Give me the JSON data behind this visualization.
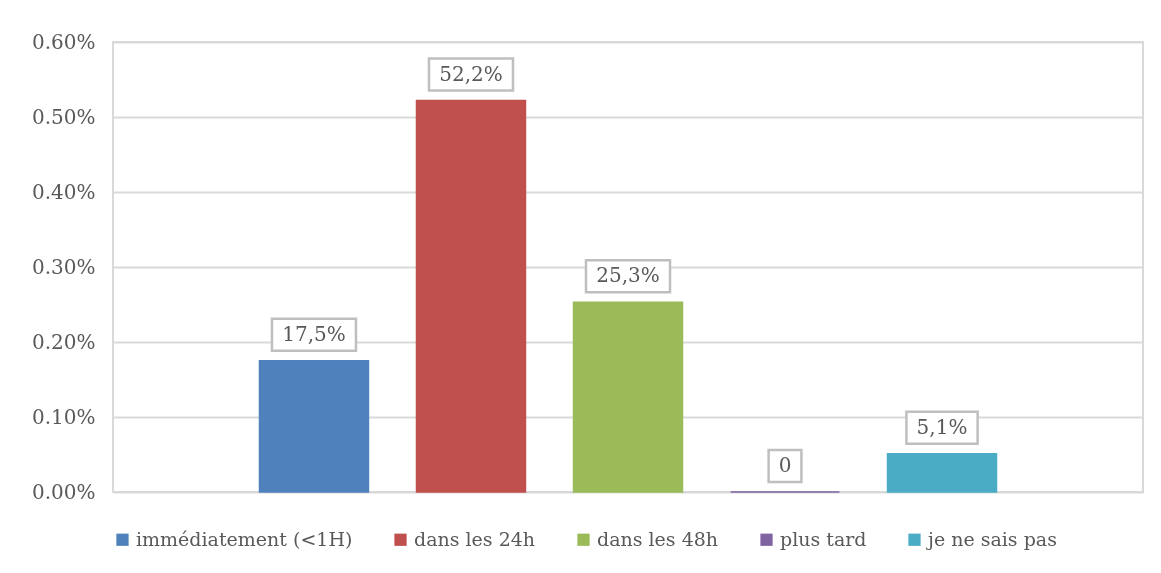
{
  "chart_data": {
    "type": "bar",
    "categories": [
      null
    ],
    "series": [
      {
        "name": "immédiatement (<1H)",
        "color": "#4f81bd",
        "values": [
          0.175
        ],
        "value_labels": [
          "17,5%"
        ]
      },
      {
        "name": "dans les 24h",
        "color": "#c0504d",
        "values": [
          0.522
        ],
        "value_labels": [
          "52,2%"
        ]
      },
      {
        "name": "dans les 48h",
        "color": "#9bbb59",
        "values": [
          0.253
        ],
        "value_labels": [
          "25,3%"
        ]
      },
      {
        "name": "plus tard",
        "color": "#8064a2",
        "values": [
          0
        ],
        "value_labels": [
          "0"
        ]
      },
      {
        "name": "je ne sais pas",
        "color": "#4bacc6",
        "values": [
          0.051
        ],
        "value_labels": [
          "5,1%"
        ]
      }
    ],
    "ylim": [
      0,
      0.6
    ],
    "yticks": [
      {
        "value": 0,
        "label": "0.00%"
      },
      {
        "value": 0.1,
        "label": "0.10%"
      },
      {
        "value": 0.2,
        "label": "0.20%"
      },
      {
        "value": 0.3,
        "label": "0.30%"
      },
      {
        "value": 0.4,
        "label": "0.40%"
      },
      {
        "value": 0.5,
        "label": "0.50%"
      },
      {
        "value": 0.6,
        "label": "0.60%"
      }
    ],
    "grid": "y",
    "legend": "bottom",
    "tick_labels": "y"
  }
}
